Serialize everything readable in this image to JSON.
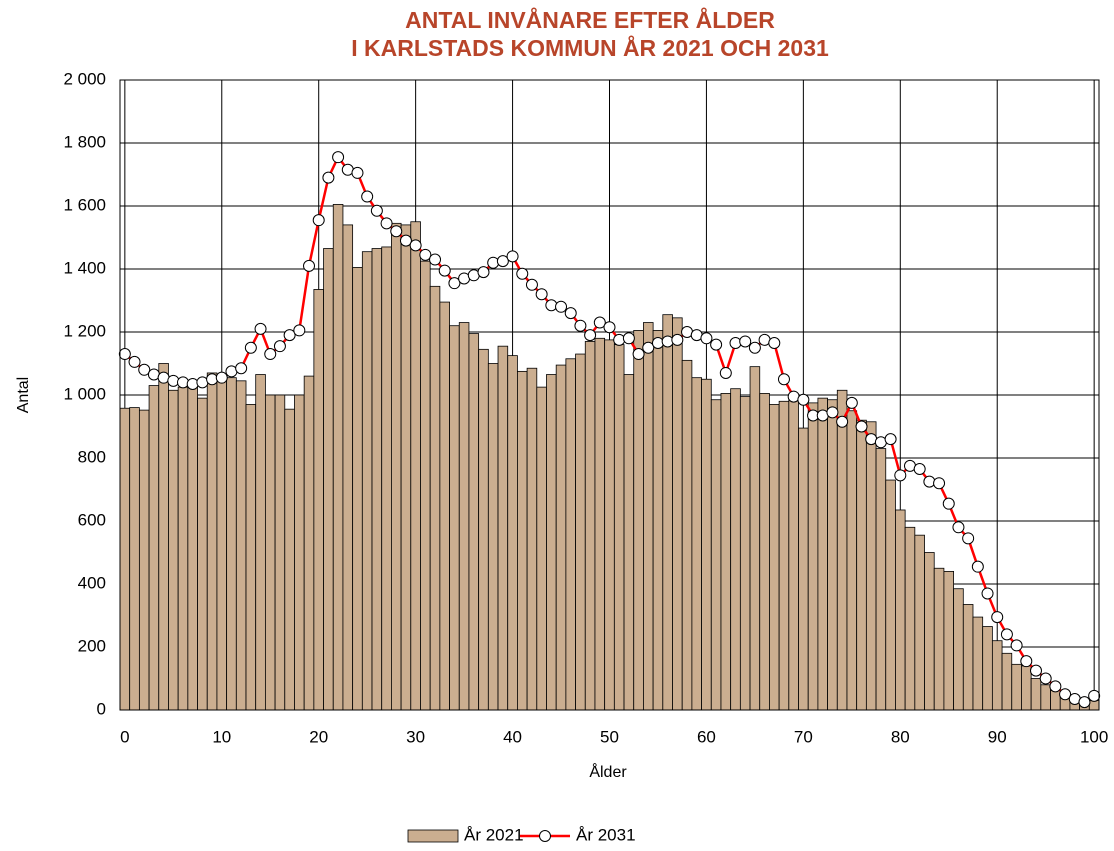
{
  "chart_data": {
    "type": "bar_line",
    "title_lines": [
      "ANTAL INVÅNARE EFTER ÅLDER",
      "I KARLSTADS KOMMUN ÅR 2021 OCH 2031"
    ],
    "x_label": "Ålder",
    "y_label": "Antal",
    "x": [
      0,
      1,
      2,
      3,
      4,
      5,
      6,
      7,
      8,
      9,
      10,
      11,
      12,
      13,
      14,
      15,
      16,
      17,
      18,
      19,
      20,
      21,
      22,
      23,
      24,
      25,
      26,
      27,
      28,
      29,
      30,
      31,
      32,
      33,
      34,
      35,
      36,
      37,
      38,
      39,
      40,
      41,
      42,
      43,
      44,
      45,
      46,
      47,
      48,
      49,
      50,
      51,
      52,
      53,
      54,
      55,
      56,
      57,
      58,
      59,
      60,
      61,
      62,
      63,
      64,
      65,
      66,
      67,
      68,
      69,
      70,
      71,
      72,
      73,
      74,
      75,
      76,
      77,
      78,
      79,
      80,
      81,
      82,
      83,
      84,
      85,
      86,
      87,
      88,
      89,
      90,
      91,
      92,
      93,
      94,
      95,
      96,
      97,
      98,
      99,
      100
    ],
    "series": [
      {
        "name": "År 2021",
        "kind": "bar",
        "color": "#cbae90",
        "values": [
          958,
          960,
          952,
          1030,
          1100,
          1015,
          1025,
          1040,
          990,
          1070,
          1060,
          1055,
          1045,
          970,
          1065,
          1000,
          1000,
          955,
          1000,
          1060,
          1335,
          1465,
          1605,
          1540,
          1405,
          1455,
          1465,
          1470,
          1545,
          1540,
          1550,
          1425,
          1345,
          1295,
          1220,
          1230,
          1195,
          1145,
          1100,
          1155,
          1125,
          1075,
          1085,
          1025,
          1065,
          1095,
          1115,
          1130,
          1170,
          1180,
          1175,
          1160,
          1065,
          1205,
          1230,
          1205,
          1255,
          1245,
          1110,
          1055,
          1050,
          985,
          1005,
          1020,
          995,
          1090,
          1005,
          970,
          980,
          985,
          895,
          975,
          990,
          985,
          1015,
          950,
          920,
          915,
          830,
          730,
          635,
          580,
          555,
          500,
          450,
          440,
          385,
          335,
          295,
          265,
          220,
          180,
          145,
          140,
          100,
          80,
          62,
          45,
          30,
          20,
          30
        ]
      },
      {
        "name": "År 2031",
        "kind": "line",
        "color": "#ff0000",
        "values": [
          1130,
          1105,
          1080,
          1065,
          1055,
          1045,
          1040,
          1035,
          1040,
          1050,
          1055,
          1075,
          1085,
          1150,
          1210,
          1130,
          1155,
          1190,
          1205,
          1410,
          1555,
          1690,
          1755,
          1715,
          1705,
          1630,
          1585,
          1545,
          1520,
          1490,
          1475,
          1445,
          1430,
          1395,
          1355,
          1370,
          1380,
          1390,
          1420,
          1425,
          1440,
          1385,
          1350,
          1320,
          1285,
          1280,
          1260,
          1220,
          1190,
          1230,
          1215,
          1175,
          1180,
          1130,
          1150,
          1165,
          1170,
          1175,
          1200,
          1190,
          1180,
          1160,
          1070,
          1165,
          1170,
          1150,
          1175,
          1165,
          1050,
          995,
          985,
          935,
          935,
          945,
          915,
          975,
          900,
          860,
          850,
          860,
          745,
          775,
          765,
          725,
          720,
          655,
          580,
          545,
          455,
          370,
          295,
          240,
          205,
          155,
          125,
          100,
          75,
          50,
          35,
          25,
          45
        ]
      }
    ],
    "xlim": [
      -0.5,
      100.5
    ],
    "xticks": [
      0,
      10,
      20,
      30,
      40,
      50,
      60,
      70,
      80,
      90,
      100
    ],
    "ylim": [
      0,
      2000
    ],
    "yticks": [
      0,
      200,
      400,
      600,
      800,
      {
        "value": 1000,
        "label": "1 000"
      },
      {
        "value": 1200,
        "label": "1 200"
      },
      {
        "value": 1400,
        "label": "1 400"
      },
      {
        "value": 1600,
        "label": "1 600"
      },
      {
        "value": 1800,
        "label": "1 800"
      },
      {
        "value": 2000,
        "label": "2 000"
      }
    ],
    "grid": true,
    "legend": "bottom"
  }
}
